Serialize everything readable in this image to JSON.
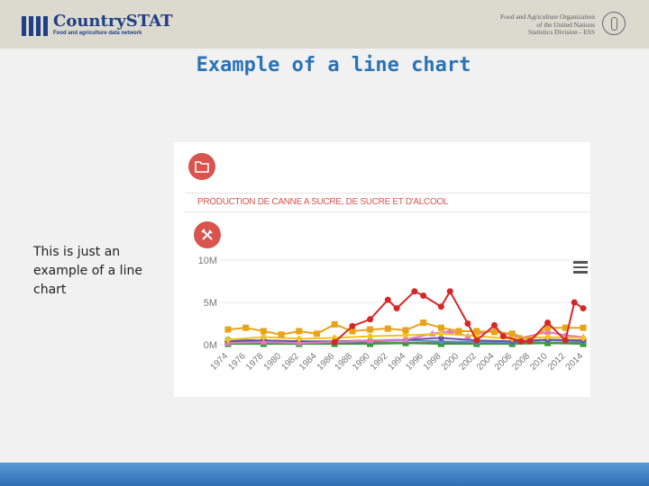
{
  "header": {
    "brand_name": "CountrySTAT",
    "brand_tagline": "Food and agriculture data network",
    "org_line1": "Food and Agriculture Organization",
    "org_line2": "of the United Nations",
    "org_line3": "Statistics Division - ESS"
  },
  "slide": {
    "title": "Example of a line chart",
    "body_text": "This is just an example of a line chart"
  },
  "colors": {
    "accent": "#d9534f",
    "title_blue": "#2a73b5",
    "brand_blue": "#1f3f86"
  },
  "icons": {
    "folder": "folder-icon",
    "tools": "tools-icon",
    "menu": "menu-icon"
  },
  "chart_data": {
    "type": "line",
    "title": "PRODUCTION DE CANNE A SUCRE, DE SUCRE ET D'ALCOOL",
    "ylim": [
      0,
      10000000
    ],
    "y_ticks": [
      "10M",
      "5M",
      "0M"
    ],
    "x_ticks": [
      "1974",
      "1976",
      "1978",
      "1980",
      "1982",
      "1984",
      "1986",
      "1988",
      "1990",
      "1992",
      "1994",
      "1996",
      "1998",
      "2000",
      "2002",
      "2004",
      "2006",
      "2008",
      "2010",
      "2012",
      "2014"
    ],
    "x_range": [
      1974,
      2014
    ],
    "grid": true,
    "series": [
      {
        "color": "#d62728",
        "marker": "circle",
        "x": [
          1986,
          1988,
          1990,
          1992,
          1993,
          1995,
          1996,
          1998,
          1999,
          2001,
          2002,
          2004,
          2005,
          2007,
          2008,
          2010,
          2012,
          2013,
          2014
        ],
        "values": [
          0.3,
          2.2,
          3.0,
          5.3,
          4.3,
          6.3,
          5.8,
          4.5,
          6.3,
          2.5,
          0.5,
          2.3,
          1.0,
          0.4,
          0.4,
          2.6,
          0.5,
          5.0,
          4.3
        ]
      },
      {
        "color": "#e8a317",
        "marker": "square",
        "x": [
          1974,
          1976,
          1978,
          1980,
          1982,
          1984,
          1986,
          1988,
          1990,
          1992,
          1994,
          1996,
          1998,
          2000,
          2002,
          2004,
          2006,
          2008,
          2010,
          2012,
          2014
        ],
        "values": [
          1.8,
          2.0,
          1.6,
          1.2,
          1.6,
          1.3,
          2.4,
          1.6,
          1.8,
          1.9,
          1.7,
          2.6,
          2.0,
          1.6,
          1.6,
          1.5,
          1.3,
          0.6,
          2.0,
          2.0,
          2.0
        ]
      },
      {
        "color": "#f0c419",
        "marker": "diamond",
        "x": [
          1974,
          1978,
          1982,
          1986,
          1990,
          1994,
          1998,
          2002,
          2006,
          2010,
          2014
        ],
        "values": [
          0.6,
          0.9,
          0.7,
          0.8,
          1.0,
          1.1,
          1.3,
          1.0,
          0.7,
          0.9,
          0.8
        ]
      },
      {
        "color": "#e377c2",
        "marker": "triangle",
        "x": [
          1974,
          1978,
          1982,
          1986,
          1990,
          1994,
          1997,
          1999,
          2001,
          2004,
          2007,
          2010,
          2012,
          2014
        ],
        "values": [
          0.2,
          0.3,
          0.2,
          0.3,
          0.5,
          0.6,
          1.3,
          1.6,
          1.0,
          1.7,
          0.8,
          1.5,
          1.1,
          0.9
        ]
      },
      {
        "color": "#6a51a3",
        "marker": "diamond",
        "x": [
          1974,
          1978,
          1982,
          1986,
          1990,
          1994,
          1998,
          2002,
          2006,
          2010,
          2014
        ],
        "values": [
          0.4,
          0.5,
          0.4,
          0.4,
          0.5,
          0.6,
          0.8,
          0.5,
          0.4,
          0.6,
          0.5
        ]
      },
      {
        "color": "#5b8fc7",
        "marker": "circle",
        "x": [
          1974,
          1978,
          1982,
          1986,
          1990,
          1994,
          1998,
          2002,
          2006,
          2010,
          2014
        ],
        "values": [
          0.6,
          0.5,
          0.4,
          0.3,
          0.4,
          0.5,
          0.4,
          0.3,
          0.3,
          0.5,
          0.4
        ]
      },
      {
        "color": "#2ca02c",
        "marker": "square",
        "x": [
          1974,
          1978,
          1982,
          1986,
          1990,
          1994,
          1998,
          2002,
          2006,
          2010,
          2014
        ],
        "values": [
          0.1,
          0.1,
          0.1,
          0.1,
          0.1,
          0.2,
          0.1,
          0.1,
          0.1,
          0.2,
          0.1
        ]
      },
      {
        "color": "#8c564b",
        "marker": "circle",
        "x": [
          1974,
          1978,
          1982,
          1986,
          1990,
          1994,
          1998,
          2002,
          2006,
          2010,
          2014
        ],
        "values": [
          0.2,
          0.2,
          0.2,
          0.2,
          0.2,
          0.2,
          0.2,
          0.2,
          0.2,
          0.2,
          0.2
        ]
      }
    ]
  }
}
